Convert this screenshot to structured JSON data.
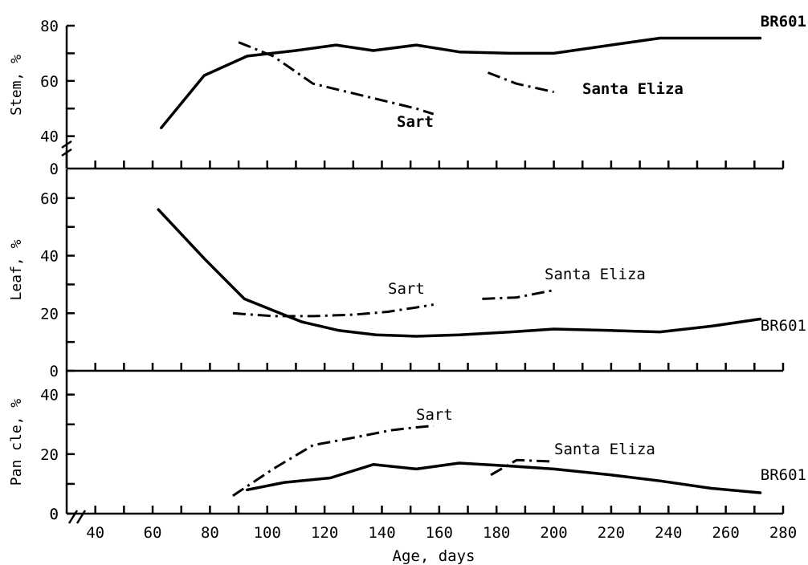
{
  "chart_data": {
    "type": "line",
    "xlabel": "Age, days",
    "xlim": [
      30,
      280
    ],
    "x_ticks": [
      40,
      60,
      80,
      100,
      120,
      140,
      160,
      180,
      200,
      220,
      240,
      260,
      280
    ],
    "panels": [
      {
        "id": "stem",
        "ylabel": "Stem, %",
        "ylim": [
          37,
          80
        ],
        "y_ticks": [
          40,
          60,
          80
        ],
        "axis_break": true,
        "baseline_label": "0",
        "series": [
          {
            "name": "BR601",
            "style": "solid",
            "label_bold": true,
            "points": [
              [
                63,
                43
              ],
              [
                78,
                62
              ],
              [
                93,
                69
              ],
              [
                110,
                71
              ],
              [
                124,
                73
              ],
              [
                137,
                71
              ],
              [
                152,
                73
              ],
              [
                167,
                70.5
              ],
              [
                185,
                70
              ],
              [
                200,
                70
              ],
              [
                220,
                73
              ],
              [
                237,
                75.5
              ],
              [
                255,
                75.5
              ],
              [
                272,
                75.5
              ]
            ]
          },
          {
            "name": "Sart",
            "style": "dashdot",
            "label_bold": true,
            "points": [
              [
                90,
                74
              ],
              [
                102,
                69
              ],
              [
                116,
                59
              ],
              [
                128,
                56
              ],
              [
                140,
                53
              ],
              [
                152,
                50
              ],
              [
                158,
                48
              ]
            ]
          },
          {
            "name": "Santa Eliza",
            "style": "dashdot",
            "label_bold": true,
            "points": [
              [
                177,
                63
              ],
              [
                187,
                59
              ],
              [
                200,
                56
              ]
            ]
          }
        ]
      },
      {
        "id": "leaf",
        "ylabel": "Leaf, %",
        "ylim": [
          0,
          70
        ],
        "y_ticks": [
          0,
          20,
          40,
          60
        ],
        "series": [
          {
            "name": "BR601",
            "style": "solid",
            "label_bold": false,
            "points": [
              [
                62,
                56
              ],
              [
                78,
                39
              ],
              [
                92,
                25
              ],
              [
                102,
                21
              ],
              [
                112,
                17
              ],
              [
                125,
                14
              ],
              [
                138,
                12.5
              ],
              [
                152,
                12
              ],
              [
                167,
                12.5
              ],
              [
                185,
                13.5
              ],
              [
                200,
                14.5
              ],
              [
                220,
                14
              ],
              [
                237,
                13.5
              ],
              [
                255,
                15.5
              ],
              [
                272,
                18
              ]
            ]
          },
          {
            "name": "Sart",
            "style": "dashdot",
            "label_bold": false,
            "points": [
              [
                88,
                20
              ],
              [
                102,
                19
              ],
              [
                116,
                19
              ],
              [
                130,
                19.5
              ],
              [
                142,
                20.5
              ],
              [
                152,
                22
              ],
              [
                158,
                23
              ]
            ]
          },
          {
            "name": "Santa Eliza",
            "style": "dashdot",
            "label_bold": false,
            "points": [
              [
                175,
                25
              ],
              [
                187,
                25.5
              ],
              [
                200,
                28
              ]
            ]
          }
        ]
      },
      {
        "id": "panicle",
        "ylabel": "Pan cle, %",
        "ylim": [
          0,
          48
        ],
        "y_ticks": [
          0,
          20,
          40
        ],
        "series": [
          {
            "name": "BR601",
            "style": "solid",
            "label_bold": false,
            "points": [
              [
                93,
                8
              ],
              [
                106,
                10.5
              ],
              [
                122,
                12
              ],
              [
                137,
                16.5
              ],
              [
                152,
                15
              ],
              [
                167,
                17
              ],
              [
                185,
                16
              ],
              [
                200,
                15
              ],
              [
                220,
                13
              ],
              [
                237,
                11
              ],
              [
                255,
                8.5
              ],
              [
                272,
                7
              ]
            ]
          },
          {
            "name": "Sart",
            "style": "dashdot",
            "label_bold": false,
            "points": [
              [
                88,
                6
              ],
              [
                102,
                15
              ],
              [
                116,
                23
              ],
              [
                130,
                25.5
              ],
              [
                143,
                28
              ],
              [
                152,
                29
              ],
              [
                158,
                29.5
              ]
            ]
          },
          {
            "name": "Santa Eliza",
            "style": "dashdot",
            "label_bold": false,
            "points": [
              [
                178,
                13
              ],
              [
                187,
                18
              ],
              [
                200,
                17.5
              ]
            ]
          }
        ]
      }
    ]
  }
}
